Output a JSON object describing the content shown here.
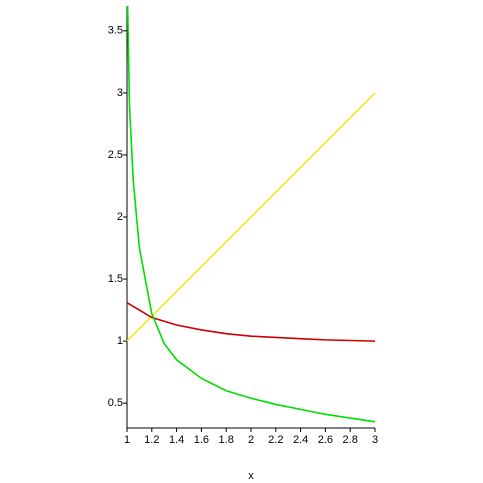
{
  "chart_data": {
    "type": "line",
    "xlabel": "x",
    "xlim": [
      1,
      3
    ],
    "ylim": [
      0.3,
      3.7
    ],
    "xticks": [
      1,
      1.2,
      1.4,
      1.6,
      1.8,
      2,
      2.2,
      2.4,
      2.6,
      2.8,
      3
    ],
    "yticks": [
      0.5,
      1,
      1.5,
      2,
      2.5,
      3,
      3.5
    ],
    "series": [
      {
        "color": "#f5e61e",
        "x": [
          1,
          3
        ],
        "values": [
          1,
          3
        ]
      },
      {
        "color": "#cc0000",
        "x": [
          1,
          1.1,
          1.2,
          1.4,
          1.6,
          1.8,
          2,
          2.2,
          2.4,
          2.6,
          2.8,
          3
        ],
        "values": [
          1.31,
          1.25,
          1.19,
          1.13,
          1.09,
          1.06,
          1.04,
          1.03,
          1.02,
          1.01,
          1.005,
          1.0
        ]
      },
      {
        "color": "#00dd00",
        "x": [
          1.005,
          1.02,
          1.05,
          1.1,
          1.2,
          1.3,
          1.4,
          1.6,
          1.8,
          2,
          2.2,
          2.4,
          2.6,
          2.8,
          3
        ],
        "values": [
          3.7,
          2.9,
          2.3,
          1.75,
          1.22,
          0.98,
          0.85,
          0.7,
          0.6,
          0.54,
          0.49,
          0.45,
          0.41,
          0.38,
          0.35
        ]
      }
    ]
  }
}
